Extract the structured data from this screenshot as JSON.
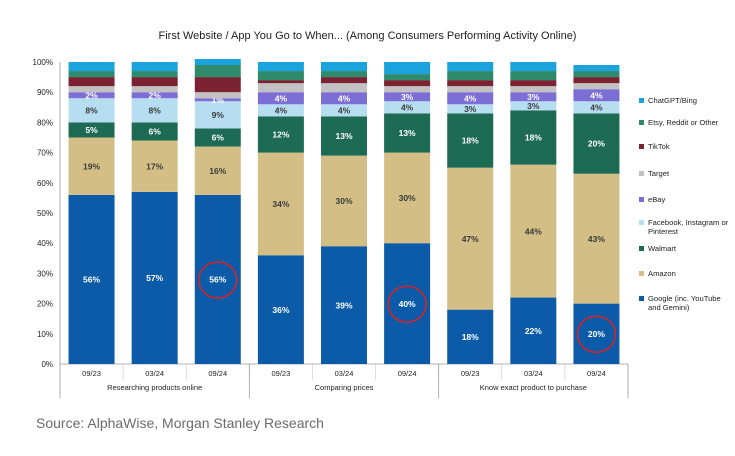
{
  "chart_data": {
    "type": "bar",
    "stacked": true,
    "title": "First Website / App You Go to When... (Among Consumers Performing Activity Online)",
    "ylim": [
      0,
      100
    ],
    "yticks": [
      "0%",
      "10%",
      "20%",
      "30%",
      "40%",
      "50%",
      "60%",
      "70%",
      "80%",
      "90%",
      "100%"
    ],
    "categories": [
      "09/23",
      "03/24",
      "09/24",
      "09/23",
      "03/24",
      "09/24",
      "09/23",
      "03/24",
      "09/24"
    ],
    "groups": [
      {
        "label": "Researching products online",
        "count": 3
      },
      {
        "label": "Comparing prices",
        "count": 3
      },
      {
        "label": "Know exact product to purchase",
        "count": 3
      }
    ],
    "series": [
      {
        "name": "Google (inc. YouTube and Gemini)",
        "color": "#0b5ba8",
        "values": [
          56,
          57,
          56,
          36,
          39,
          40,
          18,
          22,
          20
        ],
        "labels": [
          "56%",
          "57%",
          "56%",
          "36%",
          "39%",
          "40%",
          "18%",
          "22%",
          "20%"
        ]
      },
      {
        "name": "Amazon",
        "color": "#d3bf85",
        "values": [
          19,
          17,
          16,
          34,
          30,
          30,
          47,
          44,
          43
        ],
        "labels": [
          "19%",
          "17%",
          "16%",
          "34%",
          "30%",
          "30%",
          "47%",
          "44%",
          "43%"
        ]
      },
      {
        "name": "Walmart",
        "color": "#1e6b55",
        "values": [
          5,
          6,
          6,
          12,
          13,
          13,
          18,
          18,
          20
        ],
        "labels": [
          "5%",
          "6%",
          "6%",
          "12%",
          "13%",
          "13%",
          "18%",
          "18%",
          "20%"
        ]
      },
      {
        "name": "Facebook, Instagram or Pinterest",
        "color": "#b7ddf1",
        "values": [
          8,
          8,
          9,
          4,
          4,
          4,
          3,
          3,
          4
        ],
        "labels": [
          "8%",
          "8%",
          "9%",
          "4%",
          "4%",
          "4%",
          "3%",
          "3%",
          "4%"
        ]
      },
      {
        "name": "eBay",
        "color": "#7b6fd6",
        "values": [
          2,
          2,
          1,
          4,
          4,
          3,
          4,
          3,
          4
        ],
        "labels": [
          "2%",
          "2%",
          "1%",
          "4%",
          "4%",
          "3%",
          "4%",
          "3%",
          "4%"
        ]
      },
      {
        "name": "Target",
        "color": "#c2c2c2",
        "values": [
          2,
          2,
          2,
          3,
          3,
          2,
          2,
          2,
          2
        ],
        "labels": [
          "",
          "",
          "",
          "",
          "",
          "",
          "",
          "",
          ""
        ]
      },
      {
        "name": "TikTok",
        "color": "#7a2232",
        "values": [
          3,
          3,
          5,
          1,
          2,
          2,
          2,
          2,
          2
        ],
        "labels": [
          "",
          "",
          "",
          "",
          "",
          "",
          "",
          "",
          ""
        ]
      },
      {
        "name": "Etsy, Reddit or Other",
        "color": "#2e8a6a",
        "values": [
          2,
          2,
          4,
          3,
          2,
          2,
          3,
          3,
          2
        ],
        "labels": [
          "",
          "",
          "",
          "",
          "",
          "",
          "",
          "",
          ""
        ]
      },
      {
        "name": "ChatGPT/Bing",
        "color": "#1aa3dc",
        "values": [
          3,
          3,
          2,
          3,
          3,
          4,
          3,
          3,
          2
        ],
        "labels": [
          "",
          "",
          "",
          "",
          "",
          "",
          "",
          "",
          ""
        ]
      }
    ],
    "highlighted": [
      2,
      5,
      8
    ],
    "highlight_color": "#e02020"
  },
  "legend": [
    {
      "name": "ChatGPT/Bing",
      "color": "#1aa3dc"
    },
    {
      "name": "Etsy, Reddit or Other",
      "color": "#2e8a6a"
    },
    {
      "name": "TikTok",
      "color": "#7a2232"
    },
    {
      "name": "Target",
      "color": "#c2c2c2"
    },
    {
      "name": "eBay",
      "color": "#7b6fd6"
    },
    {
      "name": "Facebook, Instagram or Pinterest",
      "color": "#b7ddf1"
    },
    {
      "name": "Walmart",
      "color": "#1e6b55"
    },
    {
      "name": "Amazon",
      "color": "#d3bf85"
    },
    {
      "name": "Google (inc. YouTube and Gemini)",
      "color": "#0b5ba8"
    }
  ],
  "source": "Source: AlphaWise, Morgan Stanley Research"
}
